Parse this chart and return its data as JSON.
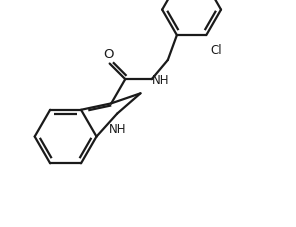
{
  "bg_color": "#ffffff",
  "line_color": "#1a1a1a",
  "line_width": 1.6,
  "font_size": 8.5,
  "xlim": [
    0,
    10
  ],
  "ylim": [
    0,
    7.7
  ]
}
